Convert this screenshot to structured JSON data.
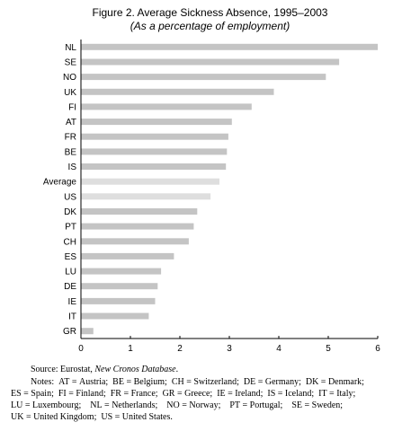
{
  "title": "Figure 2. Average Sickness Absence, 1995–2003",
  "subtitle": "(As a percentage of employment)",
  "chart_data": {
    "type": "bar",
    "orientation": "horizontal",
    "categories": [
      "NL",
      "SE",
      "NO",
      "UK",
      "FI",
      "AT",
      "FR",
      "BE",
      "IS",
      "Average",
      "US",
      "DK",
      "PT",
      "CH",
      "ES",
      "LU",
      "DE",
      "IE",
      "IT",
      "GR"
    ],
    "values": [
      6.0,
      5.22,
      4.95,
      3.9,
      3.45,
      3.05,
      2.98,
      2.95,
      2.93,
      2.8,
      2.62,
      2.35,
      2.28,
      2.18,
      1.88,
      1.62,
      1.55,
      1.5,
      1.37,
      0.25
    ],
    "highlight": [
      "Average",
      "US"
    ],
    "xlim": [
      0,
      6
    ],
    "xticks": [
      "0",
      "1",
      "2",
      "3",
      "4",
      "5",
      "6"
    ],
    "xlabel": "",
    "ylabel": "",
    "grid": false,
    "colors": {
      "bar": "#c4c4c4",
      "highlight": "#dedede",
      "axis": "#000000"
    }
  },
  "notes": {
    "source_label": "Source: Eurostat, ",
    "source_italic": "New Cronos Database",
    "source_end": ".",
    "lines": [
      "Notes:  AT = Austria;  BE = Belgium;  CH = Switzerland;  DE = Germany;  DK = Denmark;",
      "ES = Spain;  FI = Finland;  FR = France;  GR = Greece;  IE = Ireland;  IS = Iceland;  IT = Italy;",
      "LU = Luxembourg;    NL = Netherlands;    NO = Norway;    PT = Portugal;    SE = Sweden;",
      "UK = United Kingdom;  US = United States."
    ]
  }
}
